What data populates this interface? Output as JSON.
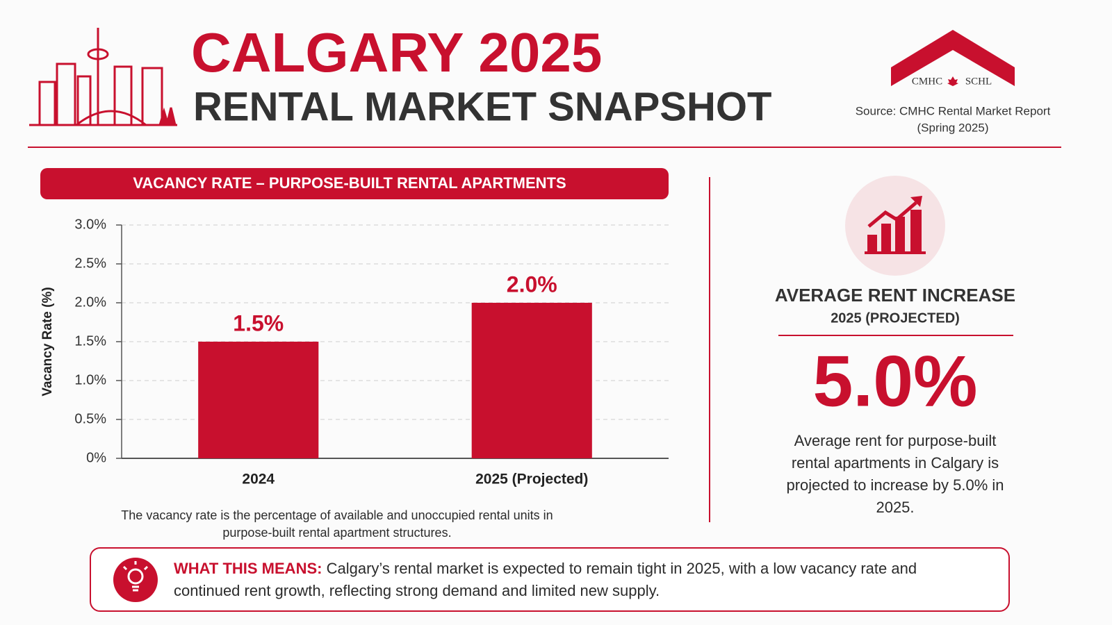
{
  "header": {
    "title": "CALGARY 2025",
    "subtitle": "RENTAL MARKET SNAPSHOT",
    "logo_left": "CMHC",
    "logo_right": "SCHL",
    "source": "Source: CMHC Rental Market Report",
    "source_note": "(Spring 2025)"
  },
  "chart_data": {
    "type": "bar",
    "title": "VACANCY RATE – PURPOSE-BUILT RENTAL APARTMENTS",
    "y_label": "Vacancy Rate (%)",
    "categories": [
      "2024",
      "2025 (Projected)"
    ],
    "values": [
      1.5,
      2.0
    ],
    "value_labels": [
      "1.5%",
      "2.0%"
    ],
    "color": "#c8102e",
    "ylim": [
      0,
      3
    ],
    "yticks": [
      {
        "value": 0,
        "label": "0%"
      },
      {
        "value": 0.5,
        "label": "0.5%"
      },
      {
        "value": 1,
        "label": "1.0%"
      },
      {
        "value": 1.5,
        "label": "1.5%"
      },
      {
        "value": 2,
        "label": "2.0%"
      },
      {
        "value": 2.5,
        "label": "2.5%"
      },
      {
        "value": 3,
        "label": "3.0%"
      }
    ],
    "grid": true,
    "note": "The vacancy rate is the percentage of available and unoccupied rental units in purpose-built rental apartment structures."
  },
  "rent_panel": {
    "title": "AVERAGE RENT INCREASE",
    "subtitle": "2025 (PROJECTED)",
    "value": "5.0%",
    "description": "Average rent for purpose-built rental apartments in Calgary is projected to increase by 5.0% in 2025."
  },
  "callout": {
    "lead": "WHAT THIS MEANS:",
    "text": "Calgary’s rental market is expected to remain tight in 2025, with a low vacancy rate and continued rent growth, reflecting strong demand and limited new supply."
  }
}
